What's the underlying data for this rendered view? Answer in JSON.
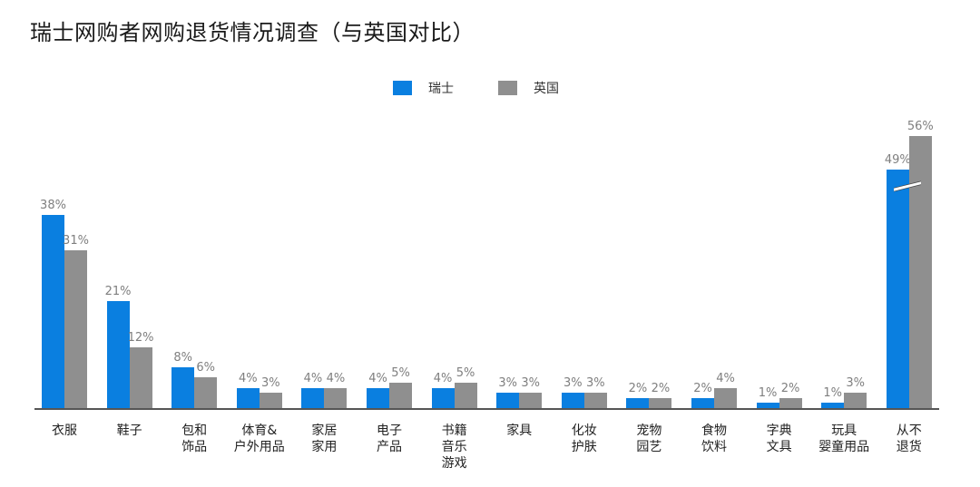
{
  "title": "瑞士网购者网购退货情况调查（与英国对比）",
  "legend": [
    {
      "label": "瑞士",
      "color": "#0a7fe0"
    },
    {
      "label": "英国",
      "color": "#8f8f8f"
    }
  ],
  "chart_data": {
    "type": "bar",
    "title": "瑞士网购者网购退货情况调查（与英国对比）",
    "xlabel": "",
    "ylabel": "",
    "categories": [
      "衣服",
      "鞋子",
      "包和\n饰品",
      "体育&\n户外用品",
      "家居\n家用",
      "电子\n产品",
      "书籍\n音乐\n游戏",
      "家具",
      "化妆\n护肤",
      "宠物\n园艺",
      "食物\n饮料",
      "字典\n文具",
      "玩具\n婴童用品",
      "从不\n退货"
    ],
    "series": [
      {
        "name": "瑞士",
        "color": "#0a7fe0",
        "values": [
          38,
          21,
          8,
          4,
          4,
          4,
          4,
          3,
          3,
          2,
          2,
          1,
          1,
          49
        ]
      },
      {
        "name": "英国",
        "color": "#8f8f8f",
        "values": [
          31,
          12,
          6,
          3,
          4,
          5,
          5,
          3,
          3,
          2,
          4,
          2,
          3,
          56
        ]
      }
    ],
    "value_labels": {
      "瑞士": [
        "38%",
        "21%",
        "8%",
        "4%",
        "4%",
        "4%",
        "4%",
        "3%",
        "3%",
        "2%",
        "2%",
        "1%",
        "1%",
        "49%"
      ],
      "英国": [
        "31%",
        "12%",
        "6%",
        "3%",
        "4%",
        "5%",
        "5%",
        "3%",
        "3%",
        "2%",
        "4%",
        "2%",
        "3%",
        "56%"
      ]
    },
    "axis_break": {
      "category": "从不\n退货",
      "note": "broken axis on last group"
    },
    "grid": false,
    "legend_position": "top-center",
    "ylim": [
      0,
      60
    ]
  }
}
